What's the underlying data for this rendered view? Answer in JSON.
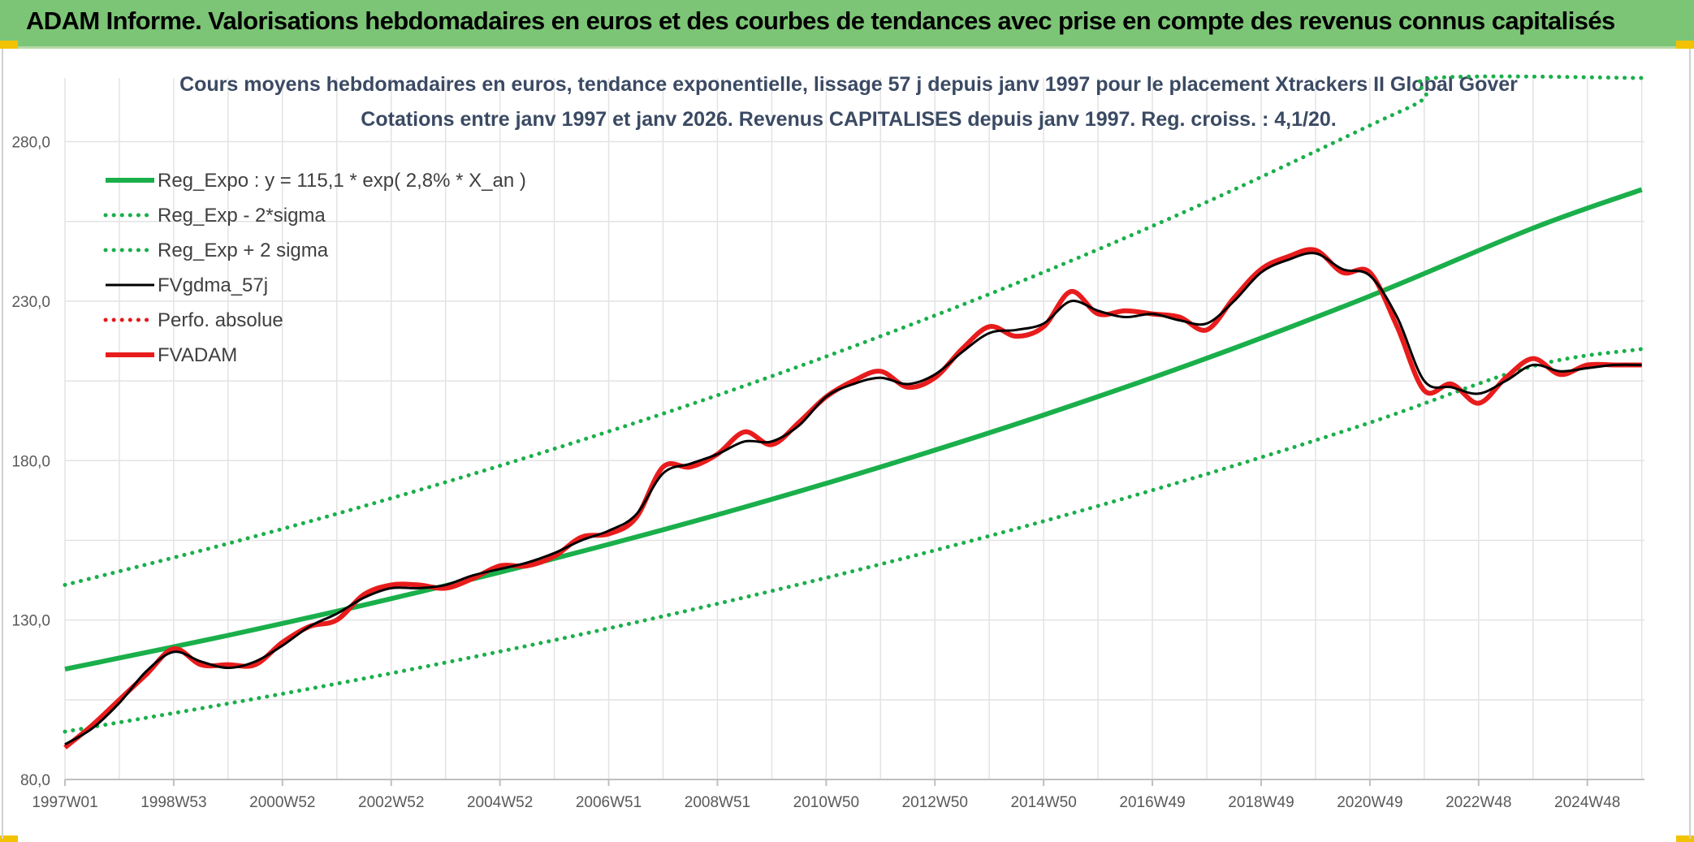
{
  "header": {
    "title": "ADAM Informe. Valorisations hebdomadaires en euros et des courbes de tendances avec prise en compte des revenus connus capitalisés"
  },
  "chart_data": {
    "type": "line",
    "title_line1": "Cours moyens hebdomadaires en euros, tendance exponentielle, lissage 57 j depuis janv 1997 pour le placement Xtrackers II Global Gover",
    "title_line2": "Cotations entre janv 1997 et janv 2026. Revenus CAPITALISES depuis janv 1997. Reg. croiss. : 4,1/20.",
    "x_tick_labels": [
      "1997W01",
      "1998W53",
      "2000W52",
      "2002W52",
      "2004W52",
      "2006W51",
      "2008W51",
      "2010W50",
      "2012W50",
      "2014W50",
      "2016W49",
      "2018W49",
      "2020W49",
      "2022W48",
      "2024W48"
    ],
    "x_tick_years": [
      1997.0,
      1999.0,
      2001.0,
      2003.0,
      2005.0,
      2007.0,
      2009.0,
      2011.0,
      2013.0,
      2015.0,
      2017.0,
      2019.0,
      2021.0,
      2023.0,
      2025.0
    ],
    "x_range": [
      1997.0,
      2026.05
    ],
    "y_tick_labels": [
      "80,0",
      "130,0",
      "180,0",
      "230,0",
      "280,0"
    ],
    "y_ticks": [
      80,
      130,
      180,
      230,
      280
    ],
    "ylim": [
      80,
      300
    ],
    "grid": true,
    "legend_position": "top-left",
    "series": [
      {
        "name": "Reg_Expo : y = 115,1 * exp( 2,8% *  X_an )",
        "style": "solid-thick",
        "color": "#1aaf4b",
        "x": [
          1997.0,
          2000.0,
          2003.0,
          2006.0,
          2009.0,
          2012.0,
          2015.0,
          2018.0,
          2021.0,
          2024.0,
          2026.0
        ],
        "y": [
          114.6,
          125.2,
          136.7,
          149.3,
          163.0,
          178.0,
          194.3,
          212.1,
          231.6,
          252.9,
          265.0
        ]
      },
      {
        "name": "Reg_Exp - 2*sigma",
        "style": "dotted",
        "color": "#1aaf4b",
        "x": [
          1997.0,
          2000.0,
          2003.0,
          2006.0,
          2009.0,
          2012.0,
          2015.0,
          2018.0,
          2021.0,
          2024.0,
          2026.0
        ],
        "y": [
          95.0,
          103.8,
          113.3,
          123.7,
          135.1,
          147.5,
          161.0,
          175.8,
          191.9,
          209.6,
          215.0
        ]
      },
      {
        "name": "Reg_Exp + 2 sigma",
        "style": "dotted",
        "color": "#1aaf4b",
        "x": [
          1997.0,
          2000.0,
          2003.0,
          2006.0,
          2009.0,
          2012.0,
          2015.0,
          2018.0,
          2021.0,
          2022.0,
          2022.2,
          2026.0
        ],
        "y": [
          141.0,
          154.0,
          168.2,
          183.7,
          200.5,
          219.0,
          239.1,
          261.1,
          285.1,
          293.5,
          300.0,
          300.0
        ]
      },
      {
        "name": "FVgdma_57j",
        "style": "solid",
        "color": "#000000",
        "x": [
          1997.0,
          1997.5,
          1998.0,
          1998.5,
          1999.0,
          1999.5,
          2000.0,
          2000.5,
          2001.0,
          2001.5,
          2002.0,
          2002.5,
          2003.0,
          2003.5,
          2004.0,
          2004.5,
          2005.0,
          2005.5,
          2006.0,
          2006.5,
          2007.0,
          2007.5,
          2008.0,
          2008.5,
          2009.0,
          2009.5,
          2010.0,
          2010.5,
          2011.0,
          2011.5,
          2012.0,
          2012.5,
          2013.0,
          2013.5,
          2014.0,
          2014.5,
          2015.0,
          2015.5,
          2016.0,
          2016.5,
          2017.0,
          2017.5,
          2018.0,
          2018.5,
          2019.0,
          2019.5,
          2020.0,
          2020.5,
          2021.0,
          2021.5,
          2022.0,
          2022.5,
          2023.0,
          2023.5,
          2024.0,
          2024.5,
          2025.0,
          2025.5,
          2026.0
        ],
        "y": [
          91.0,
          96.0,
          104.0,
          114.0,
          120.0,
          117.0,
          115.0,
          117.0,
          122.0,
          128.0,
          132.0,
          137.0,
          140.0,
          140.0,
          141.0,
          144.0,
          146.0,
          148.0,
          151.0,
          155.0,
          158.0,
          163.0,
          176.0,
          179.0,
          182.0,
          186.0,
          186.0,
          191.0,
          200.0,
          204.0,
          206.0,
          204.0,
          207.0,
          214.0,
          220.0,
          221.0,
          223.0,
          230.0,
          227.0,
          225.0,
          226.0,
          224.0,
          223.0,
          230.0,
          239.0,
          243.0,
          245.0,
          240.0,
          238.0,
          225.0,
          205.0,
          203.0,
          201.0,
          205.0,
          210.0,
          208.0,
          209.0,
          210.0,
          210.0
        ]
      },
      {
        "name": "Perfo. absolue",
        "style": "dotted",
        "color": "#e21b1b",
        "x": [],
        "y": []
      },
      {
        "name": "FVADAM",
        "style": "solid-thick",
        "color": "#e81c1c",
        "x": [
          1997.0,
          1997.5,
          1998.0,
          1998.5,
          1999.0,
          1999.5,
          2000.0,
          2000.5,
          2001.0,
          2001.5,
          2002.0,
          2002.5,
          2003.0,
          2003.5,
          2004.0,
          2004.5,
          2005.0,
          2005.5,
          2006.0,
          2006.5,
          2007.0,
          2007.5,
          2008.0,
          2008.5,
          2009.0,
          2009.5,
          2010.0,
          2010.5,
          2011.0,
          2011.5,
          2012.0,
          2012.5,
          2013.0,
          2013.5,
          2014.0,
          2014.5,
          2015.0,
          2015.5,
          2016.0,
          2016.5,
          2017.0,
          2017.5,
          2018.0,
          2018.5,
          2019.0,
          2019.5,
          2020.0,
          2020.5,
          2021.0,
          2021.5,
          2022.0,
          2022.5,
          2023.0,
          2023.5,
          2024.0,
          2024.5,
          2025.0,
          2025.5,
          2026.0
        ],
        "y": [
          90.0,
          97.0,
          105.0,
          113.0,
          121.0,
          116.0,
          116.0,
          116.0,
          123.0,
          128.0,
          130.0,
          138.0,
          141.0,
          141.0,
          140.0,
          143.0,
          147.0,
          147.0,
          150.0,
          156.0,
          157.0,
          162.0,
          178.0,
          178.0,
          182.0,
          189.0,
          185.0,
          192.0,
          200.0,
          205.0,
          208.0,
          203.0,
          206.0,
          215.0,
          222.0,
          219.0,
          222.0,
          233.0,
          226.0,
          227.0,
          226.0,
          225.0,
          221.0,
          231.0,
          240.0,
          244.0,
          246.0,
          239.0,
          239.0,
          222.0,
          202.0,
          204.0,
          198.0,
          206.0,
          212.0,
          207.0,
          210.0,
          210.0,
          210.0
        ]
      }
    ]
  }
}
